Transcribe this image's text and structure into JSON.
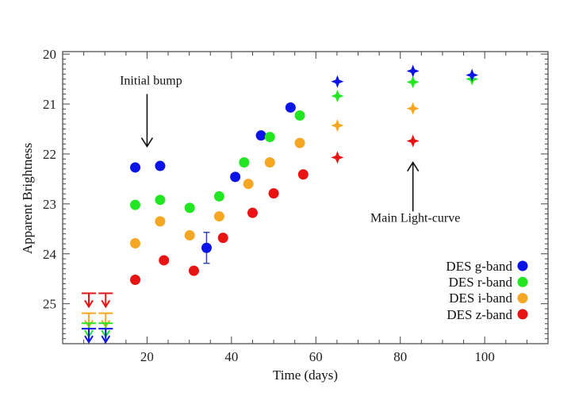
{
  "chart_data": {
    "type": "scatter",
    "title": "",
    "xlabel": "Time (days)",
    "ylabel": "Apparent Brightness",
    "xlim": [
      0,
      115
    ],
    "ylim": [
      25.8,
      19.95
    ],
    "y_inverted": true,
    "grid": false,
    "xticks": [
      20,
      40,
      60,
      80,
      100
    ],
    "yticks": [
      20,
      21,
      22,
      23,
      24,
      25
    ],
    "legend_position": "bottom-right",
    "series": [
      {
        "name": "DES g-band",
        "color": "#0a14e6",
        "points": [
          [
            17.2,
            22.27
          ],
          [
            23.1,
            22.24
          ],
          [
            34.1,
            23.88
          ],
          [
            40.9,
            22.46
          ],
          [
            47.0,
            21.63
          ],
          [
            54.0,
            21.07
          ]
        ],
        "errors": [
          0,
          0,
          0.31,
          0,
          0,
          0
        ],
        "star_points": [
          [
            65.1,
            20.55
          ],
          [
            83.0,
            20.34
          ],
          [
            97.0,
            20.42
          ]
        ],
        "upper_limits": [
          [
            6.2,
            25.5
          ],
          [
            10.2,
            25.5
          ]
        ]
      },
      {
        "name": "DES r-band",
        "color": "#22e622",
        "points": [
          [
            17.2,
            23.02
          ],
          [
            23.1,
            22.92
          ],
          [
            30.1,
            23.08
          ],
          [
            37.1,
            22.85
          ],
          [
            43.0,
            22.17
          ],
          [
            49.1,
            21.66
          ],
          [
            56.2,
            21.23
          ]
        ],
        "errors": [
          0,
          0,
          0,
          0,
          0,
          0,
          0
        ],
        "star_points": [
          [
            65.1,
            20.84
          ],
          [
            83.0,
            20.56
          ],
          [
            97.0,
            20.5
          ]
        ],
        "upper_limits": [
          [
            6.2,
            25.39
          ],
          [
            10.2,
            25.39
          ]
        ]
      },
      {
        "name": "DES i-band",
        "color": "#f5a623",
        "points": [
          [
            17.2,
            23.79
          ],
          [
            23.1,
            23.35
          ],
          [
            30.1,
            23.63
          ],
          [
            37.1,
            23.25
          ],
          [
            44.0,
            22.6
          ],
          [
            49.1,
            22.17
          ],
          [
            56.2,
            21.78
          ]
        ],
        "errors": [
          0,
          0,
          0,
          0,
          0,
          0,
          0
        ],
        "star_points": [
          [
            65.1,
            21.43
          ],
          [
            83.0,
            21.09
          ]
        ],
        "upper_limits": [
          [
            6.2,
            25.19
          ],
          [
            10.2,
            25.19
          ]
        ]
      },
      {
        "name": "DES z-band",
        "color": "#e81414",
        "points": [
          [
            17.2,
            24.52
          ],
          [
            24.0,
            24.13
          ],
          [
            31.1,
            24.34
          ],
          [
            38.0,
            23.68
          ],
          [
            45.0,
            23.18
          ],
          [
            50.0,
            22.79
          ],
          [
            57.0,
            22.41
          ]
        ],
        "errors": [
          0.07,
          0,
          0,
          0,
          0,
          0,
          0
        ],
        "star_points": [
          [
            65.1,
            22.07
          ],
          [
            83.0,
            21.74
          ]
        ],
        "upper_limits": [
          [
            6.2,
            24.79
          ],
          [
            10.2,
            24.79
          ]
        ]
      }
    ],
    "annotations": [
      {
        "text": "Initial bump",
        "arrow_x": 20,
        "arrow_from": 20.8,
        "arrow_to": 21.85
      },
      {
        "text": "Main Light-curve",
        "arrow_x": 83,
        "arrow_from": 23.15,
        "arrow_to": 22.17
      }
    ]
  }
}
